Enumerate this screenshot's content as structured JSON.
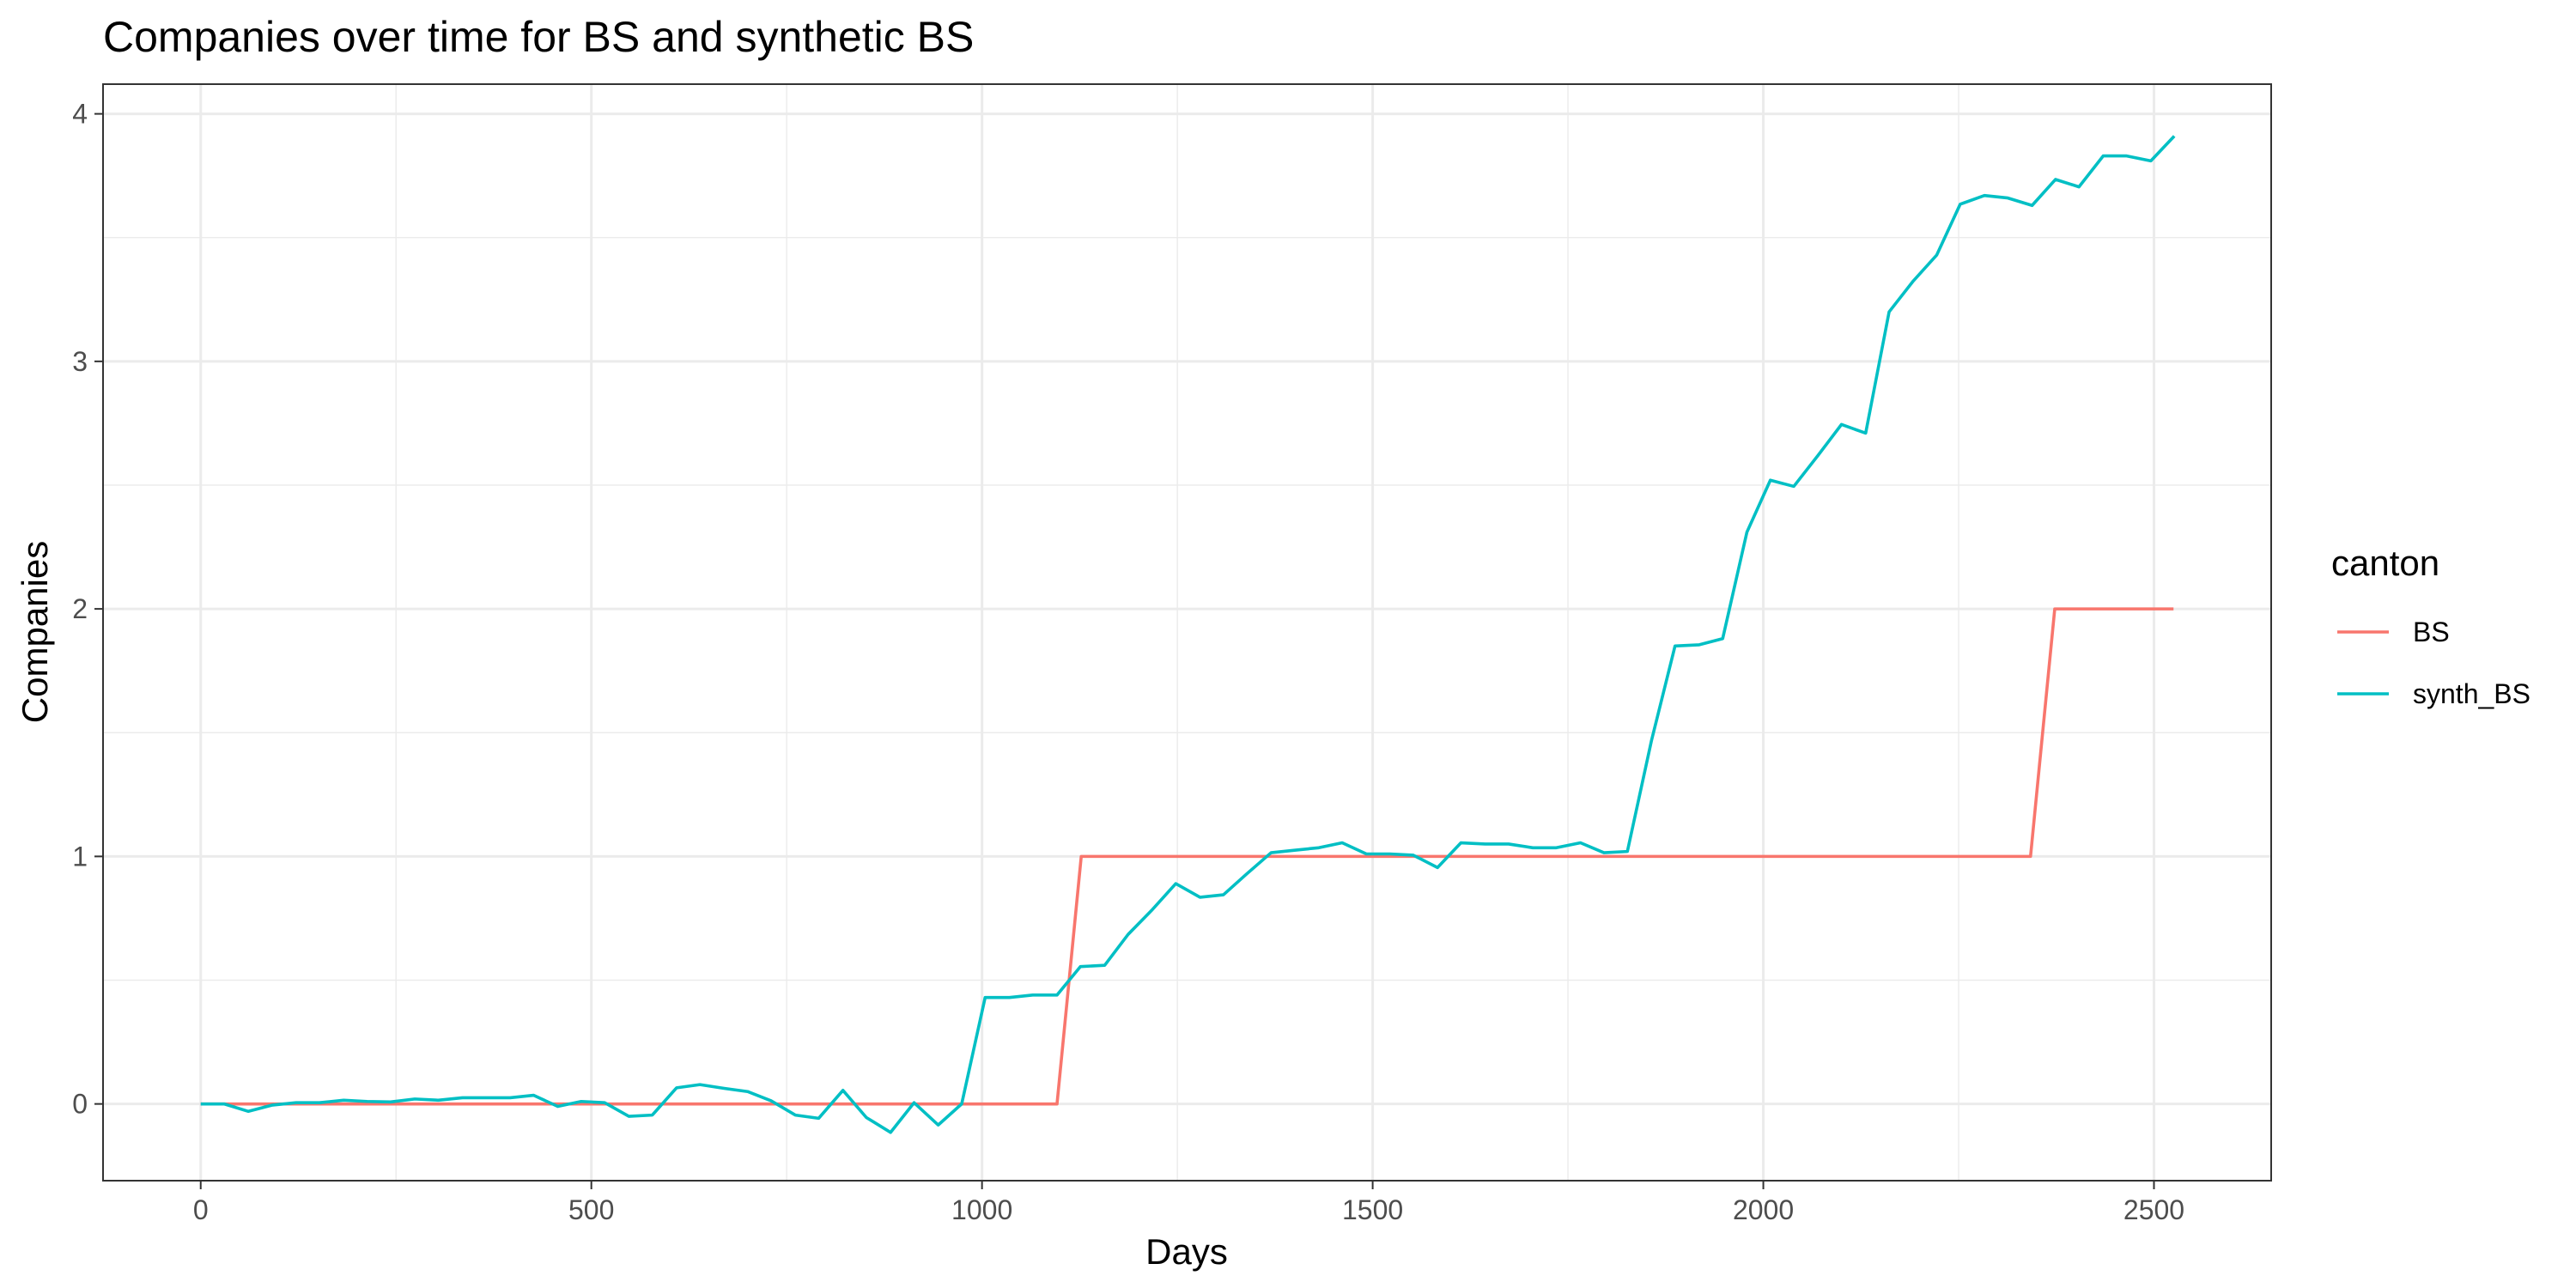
{
  "chart_data": {
    "type": "line",
    "title": "Companies over time for BS and synthetic BS",
    "xlabel": "Days",
    "ylabel": "Companies",
    "xlim": [
      -125,
      2650
    ],
    "ylim": [
      -0.31,
      4.12
    ],
    "x_ticks": [
      0,
      500,
      1000,
      1500,
      2000,
      2500
    ],
    "x_tick_labels": [
      "0",
      "500",
      "1000",
      "1500",
      "2000",
      "2500"
    ],
    "y_ticks": [
      0,
      1,
      2,
      3,
      4
    ],
    "y_tick_labels": [
      "0",
      "1",
      "2",
      "3",
      "4"
    ],
    "grid": true,
    "legend": {
      "title": "canton",
      "position": "right",
      "entries": [
        "BS",
        "synth_BS"
      ]
    },
    "series": [
      {
        "name": "BS",
        "color": "#f8766d",
        "points": [
          [
            0,
            0
          ],
          [
            1096,
            0
          ],
          [
            1127,
            1
          ],
          [
            2342,
            1
          ],
          [
            2373,
            2
          ],
          [
            2525,
            2
          ]
        ]
      },
      {
        "name": "synth_BS",
        "color": "#00bfc4",
        "points": [
          [
            0,
            0
          ],
          [
            30,
            0
          ],
          [
            61,
            -0.03
          ],
          [
            91,
            -0.005
          ],
          [
            122,
            0.005
          ],
          [
            152,
            0.005
          ],
          [
            183,
            0.015
          ],
          [
            213,
            0.01
          ],
          [
            243,
            0.008
          ],
          [
            274,
            0.02
          ],
          [
            304,
            0.015
          ],
          [
            335,
            0.025
          ],
          [
            365,
            0.025
          ],
          [
            396,
            0.025
          ],
          [
            426,
            0.035
          ],
          [
            457,
            -0.01
          ],
          [
            487,
            0.01
          ],
          [
            517,
            0.005
          ],
          [
            548,
            -0.05
          ],
          [
            578,
            -0.045
          ],
          [
            609,
            0.065
          ],
          [
            639,
            0.078
          ],
          [
            670,
            0.063
          ],
          [
            700,
            0.05
          ],
          [
            730,
            0.013
          ],
          [
            761,
            -0.045
          ],
          [
            791,
            -0.058
          ],
          [
            822,
            0.055
          ],
          [
            852,
            -0.055
          ],
          [
            883,
            -0.115
          ],
          [
            913,
            0.005
          ],
          [
            944,
            -0.085
          ],
          [
            974,
            0
          ],
          [
            1004,
            0.43
          ],
          [
            1035,
            0.43
          ],
          [
            1065,
            0.44
          ],
          [
            1096,
            0.44
          ],
          [
            1126,
            0.555
          ],
          [
            1157,
            0.56
          ],
          [
            1187,
            0.685
          ],
          [
            1218,
            0.785
          ],
          [
            1248,
            0.89
          ],
          [
            1279,
            0.835
          ],
          [
            1309,
            0.845
          ],
          [
            1339,
            0.93
          ],
          [
            1370,
            1.015
          ],
          [
            1400,
            1.025
          ],
          [
            1431,
            1.035
          ],
          [
            1461,
            1.055
          ],
          [
            1492,
            1.01
          ],
          [
            1522,
            1.01
          ],
          [
            1552,
            1.005
          ],
          [
            1583,
            0.955
          ],
          [
            1613,
            1.055
          ],
          [
            1644,
            1.05
          ],
          [
            1674,
            1.05
          ],
          [
            1705,
            1.035
          ],
          [
            1735,
            1.035
          ],
          [
            1766,
            1.055
          ],
          [
            1796,
            1.015
          ],
          [
            1826,
            1.02
          ],
          [
            1857,
            1.47
          ],
          [
            1887,
            1.85
          ],
          [
            1918,
            1.855
          ],
          [
            1948,
            1.88
          ],
          [
            1979,
            2.31
          ],
          [
            2009,
            2.52
          ],
          [
            2039,
            2.495
          ],
          [
            2070,
            2.62
          ],
          [
            2100,
            2.745
          ],
          [
            2131,
            2.71
          ],
          [
            2161,
            3.2
          ],
          [
            2192,
            3.325
          ],
          [
            2222,
            3.43
          ],
          [
            2252,
            3.635
          ],
          [
            2283,
            3.67
          ],
          [
            2313,
            3.66
          ],
          [
            2344,
            3.63
          ],
          [
            2374,
            3.735
          ],
          [
            2404,
            3.705
          ],
          [
            2435,
            3.83
          ],
          [
            2465,
            3.83
          ],
          [
            2496,
            3.81
          ],
          [
            2526,
            3.91
          ]
        ]
      }
    ]
  }
}
